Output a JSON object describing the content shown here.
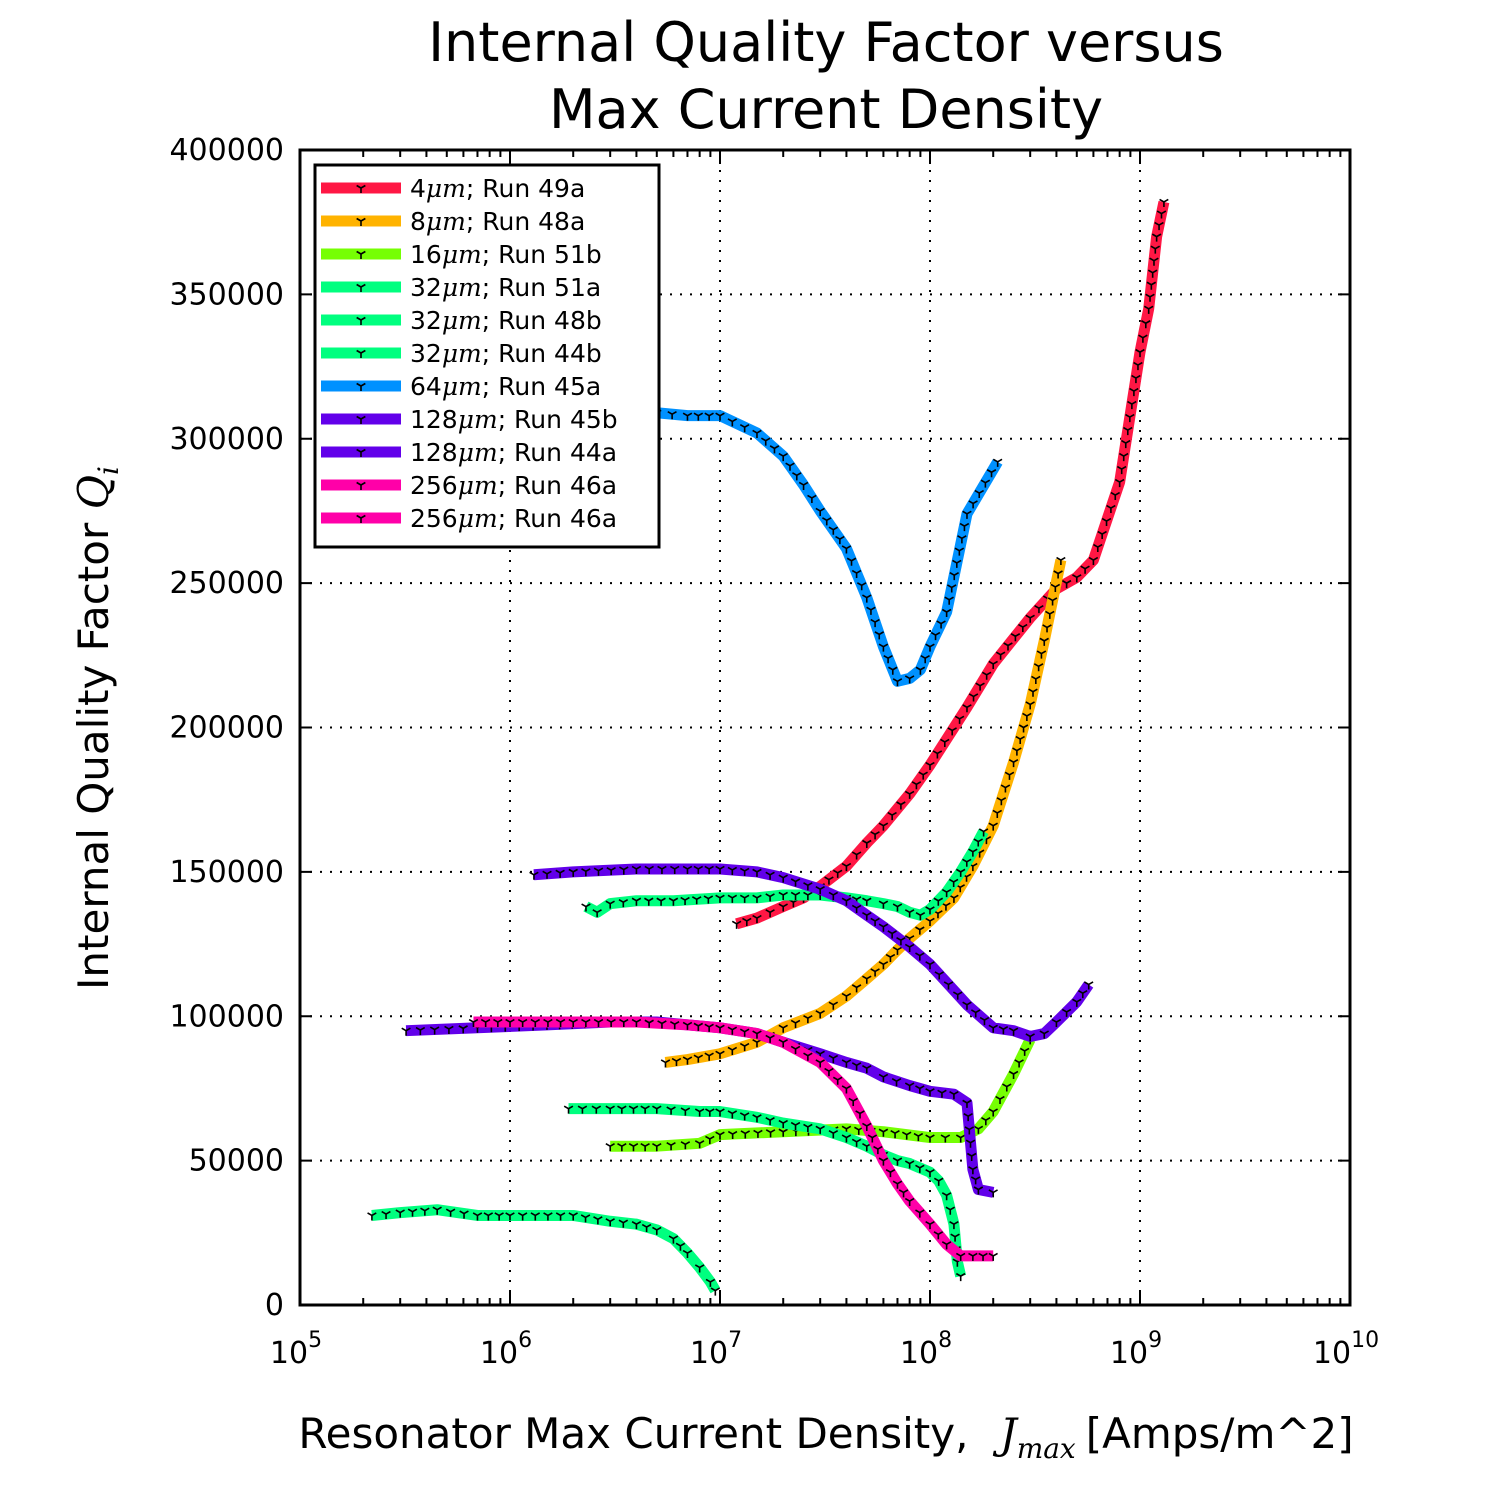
{
  "chart_data": {
    "type": "line",
    "title_lines": [
      "Internal Quality Factor versus",
      "Max Current Density"
    ],
    "xlabel": {
      "text": "Resonator Max Current Density, ",
      "math_base": "J",
      "math_sub": "max",
      "unit": "[Amps/m^2]"
    },
    "ylabel": {
      "text": "Internal Quality Factor ",
      "math_base": "Q",
      "math_sub": "i"
    },
    "xscale": "log",
    "xlim": [
      100000,
      10000000000
    ],
    "ylim": [
      0,
      400000
    ],
    "x_ticks": [
      {
        "value": 100000,
        "base": "10",
        "exp": "5"
      },
      {
        "value": 1000000,
        "base": "10",
        "exp": "6"
      },
      {
        "value": 10000000,
        "base": "10",
        "exp": "7"
      },
      {
        "value": 100000000,
        "base": "10",
        "exp": "8"
      },
      {
        "value": 1000000000,
        "base": "10",
        "exp": "9"
      },
      {
        "value": 10000000000,
        "base": "10",
        "exp": "10"
      }
    ],
    "y_ticks": [
      {
        "value": 0,
        "label": "0"
      },
      {
        "value": 50000,
        "label": "50000"
      },
      {
        "value": 100000,
        "label": "100000"
      },
      {
        "value": 150000,
        "label": "150000"
      },
      {
        "value": 200000,
        "label": "200000"
      },
      {
        "value": 250000,
        "label": "250000"
      },
      {
        "value": 300000,
        "label": "300000"
      },
      {
        "value": 350000,
        "label": "350000"
      },
      {
        "value": 400000,
        "label": "400000"
      }
    ],
    "grid": true,
    "legend_position": "top-left",
    "marker": "tri_down",
    "series": [
      {
        "name": "4",
        "legend_suffix": "; Run 49a",
        "color": "#ff1744",
        "x": [
          12000000,
          15000000,
          20000000,
          25000000,
          30000000,
          40000000,
          50000000,
          60000000,
          80000000,
          100000000,
          150000000,
          200000000,
          300000000,
          400000000,
          500000000,
          600000000,
          800000000,
          1000000000,
          1100000000,
          1200000000,
          1300000000
        ],
        "y": [
          132000,
          134000,
          138000,
          141000,
          145000,
          152000,
          160000,
          166000,
          177000,
          187000,
          207000,
          222000,
          238000,
          248000,
          252000,
          258000,
          285000,
          330000,
          345000,
          370000,
          382000
        ]
      },
      {
        "name": "8",
        "legend_suffix": "; Run 48a",
        "color": "#ffb300",
        "x": [
          5500000,
          7000000,
          10000000,
          15000000,
          20000000,
          30000000,
          40000000,
          50000000,
          60000000,
          70000000,
          80000000,
          100000000,
          130000000,
          160000000,
          200000000,
          250000000,
          300000000,
          350000000,
          420000000
        ],
        "y": [
          84000,
          85000,
          87000,
          91000,
          96000,
          101000,
          107000,
          113000,
          118000,
          123000,
          127000,
          133000,
          141000,
          152000,
          166000,
          188000,
          208000,
          230000,
          258000
        ]
      },
      {
        "name": "16",
        "legend_suffix": "; Run 51b",
        "color": "#76ff03",
        "x": [
          3000000,
          5000000,
          8000000,
          10000000,
          20000000,
          40000000,
          60000000,
          100000000,
          140000000,
          170000000,
          200000000,
          250000000,
          300000000
        ],
        "y": [
          55000,
          55000,
          56000,
          59000,
          60000,
          61000,
          60000,
          58000,
          58000,
          61000,
          67000,
          80000,
          92000
        ]
      },
      {
        "name": "32",
        "legend_suffix": "; Run 51a",
        "color": "#00ff7f",
        "x": [
          2300000,
          2600000,
          3000000,
          4000000,
          6000000,
          10000000,
          15000000,
          20000000,
          30000000,
          40000000,
          50000000,
          60000000,
          70000000,
          80000000,
          90000000,
          100000000,
          120000000,
          140000000,
          160000000,
          180000000
        ],
        "y": [
          138000,
          136000,
          139000,
          140000,
          140000,
          141000,
          141000,
          142000,
          142000,
          141000,
          140000,
          139000,
          138000,
          136000,
          135000,
          137000,
          143000,
          150000,
          157000,
          164000
        ]
      },
      {
        "name": "32",
        "legend_suffix": "; Run 48b",
        "color": "#00ff7f",
        "x": [
          1900000,
          3000000,
          5000000,
          8000000,
          10000000,
          15000000,
          20000000,
          30000000,
          40000000,
          50000000,
          60000000,
          70000000,
          80000000,
          100000000,
          110000000,
          120000000,
          130000000,
          135000000,
          140000000
        ],
        "y": [
          68000,
          68000,
          68000,
          67000,
          67000,
          65000,
          63000,
          61000,
          58000,
          55000,
          52000,
          50000,
          49000,
          46000,
          43000,
          38000,
          28000,
          15000,
          10000
        ]
      },
      {
        "name": "32",
        "legend_suffix": "; Run 44b",
        "color": "#00ff7f",
        "x": [
          220000,
          300000,
          450000,
          700000,
          1000000,
          2000000,
          3000000,
          4000000,
          5000000,
          6000000,
          7000000,
          8000000,
          9000000,
          9500000
        ],
        "y": [
          31000,
          32000,
          33000,
          31000,
          31000,
          31000,
          29000,
          28000,
          26000,
          23000,
          18000,
          13000,
          8000,
          5000
        ]
      },
      {
        "name": "64",
        "legend_suffix": "; Run 45a",
        "color": "#0091ff",
        "x": [
          3000000,
          5000000,
          7000000,
          10000000,
          15000000,
          20000000,
          25000000,
          30000000,
          40000000,
          50000000,
          60000000,
          70000000,
          80000000,
          90000000,
          100000000,
          120000000,
          150000000,
          210000000
        ],
        "y": [
          309000,
          309000,
          308000,
          308000,
          302000,
          294000,
          284000,
          275000,
          262000,
          245000,
          228000,
          216000,
          217000,
          220000,
          228000,
          240000,
          274000,
          292000
        ]
      },
      {
        "name": "128",
        "legend_suffix": "; Run 45b",
        "color": "#6200ea",
        "x": [
          1300000,
          2000000,
          4000000,
          7000000,
          10000000,
          15000000,
          20000000,
          30000000,
          40000000,
          50000000,
          60000000,
          80000000,
          100000000,
          150000000,
          200000000,
          250000000,
          300000000,
          350000000,
          400000000,
          500000000,
          570000000
        ],
        "y": [
          149000,
          150000,
          151000,
          151000,
          151000,
          150000,
          148000,
          144000,
          140000,
          135000,
          131000,
          124000,
          118000,
          104000,
          96000,
          95000,
          93000,
          94000,
          98000,
          105000,
          111000
        ]
      },
      {
        "name": "128",
        "legend_suffix": "; Run 44a",
        "color": "#6200ea",
        "x": [
          320000,
          700000,
          1500000,
          3000000,
          5000000,
          10000000,
          15000000,
          20000000,
          30000000,
          40000000,
          50000000,
          60000000,
          80000000,
          100000000,
          130000000,
          150000000,
          160000000,
          170000000,
          200000000
        ],
        "y": [
          95000,
          96000,
          97000,
          98000,
          98000,
          96000,
          94000,
          91000,
          87000,
          84000,
          82000,
          79000,
          76000,
          74000,
          73000,
          70000,
          47000,
          40000,
          39000
        ]
      },
      {
        "name": "256",
        "legend_suffix": "; Run 46a",
        "color": "#ff00a8",
        "x": [
          670000,
          1000000,
          2000000,
          4000000,
          7000000,
          10000000,
          15000000,
          20000000,
          30000000,
          40000000,
          50000000,
          60000000,
          70000000,
          80000000,
          100000000,
          120000000,
          140000000,
          160000000,
          200000000
        ],
        "y": [
          98000,
          98000,
          98000,
          98000,
          97000,
          96000,
          94000,
          91000,
          84000,
          75000,
          62000,
          50000,
          42000,
          36000,
          28000,
          21000,
          17000,
          17000,
          17000
        ]
      },
      {
        "name": "256",
        "legend_suffix": "; Run 46a",
        "color": "#ff00a8",
        "x": [],
        "y": []
      }
    ]
  }
}
